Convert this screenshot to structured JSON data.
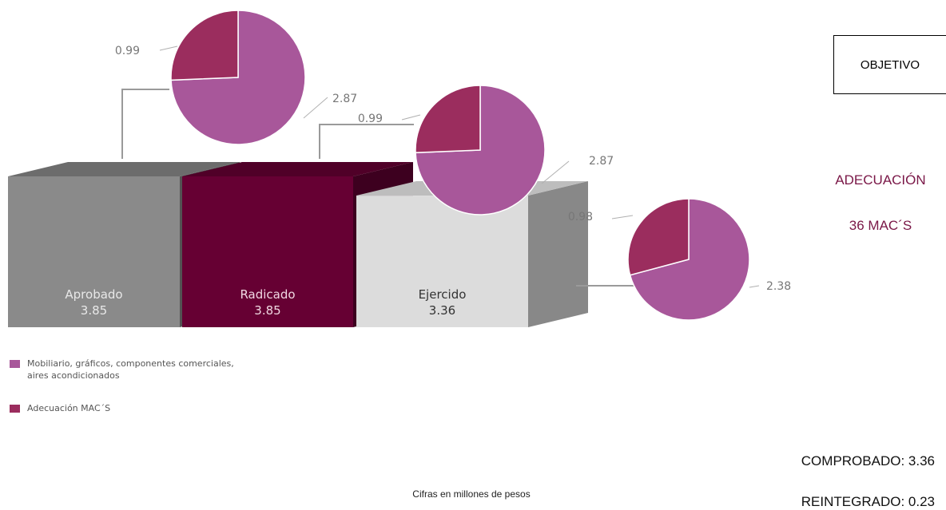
{
  "chart_data": {
    "type": "bar",
    "categories": [
      "Aprobado",
      "Radicado",
      "Ejercido"
    ],
    "values": [
      3.85,
      3.85,
      3.36
    ],
    "value_labels": [
      "3.85",
      "3.85",
      "3.36"
    ],
    "bar_colors": [
      "#8a8a8a",
      "#660033",
      "#dcdcdc"
    ],
    "bar_text_colors": [
      "#e8e8e8",
      "#f0d8e2",
      "#333333"
    ],
    "pies": [
      {
        "bar": "Aprobado",
        "slices": [
          {
            "series": "Mobiliario",
            "value": 2.87,
            "label": "2.87"
          },
          {
            "series": "Adecuacion",
            "value": 0.99,
            "label": "0.99"
          }
        ]
      },
      {
        "bar": "Radicado",
        "slices": [
          {
            "series": "Mobiliario",
            "value": 2.87,
            "label": "2.87"
          },
          {
            "series": "Adecuacion",
            "value": 0.99,
            "label": "0.99"
          }
        ]
      },
      {
        "bar": "Ejercido",
        "slices": [
          {
            "series": "Mobiliario",
            "value": 2.38,
            "label": "2.38"
          },
          {
            "series": "Adecuacion",
            "value": 0.98,
            "label": "0.98"
          }
        ]
      }
    ],
    "legend": [
      {
        "key": "Mobiliario",
        "label": "Mobiliario, gráficos, componentes comerciales, aires acondicionados",
        "color": "#a8579a"
      },
      {
        "key": "Adecuacion",
        "label": "Adecuación MAC´S",
        "color": "#9b2d5e"
      }
    ],
    "legend_position": "bottom-left",
    "grid": false
  },
  "objetivo": "OBJETIVO",
  "adecuacion": "ADECUACIÓN",
  "macs": "36 MAC´S",
  "comprobado": "COMPROBADO: 3.36",
  "reintegrado": "REINTEGRADO: 0.23",
  "footnote": "Cifras en millones de pesos"
}
